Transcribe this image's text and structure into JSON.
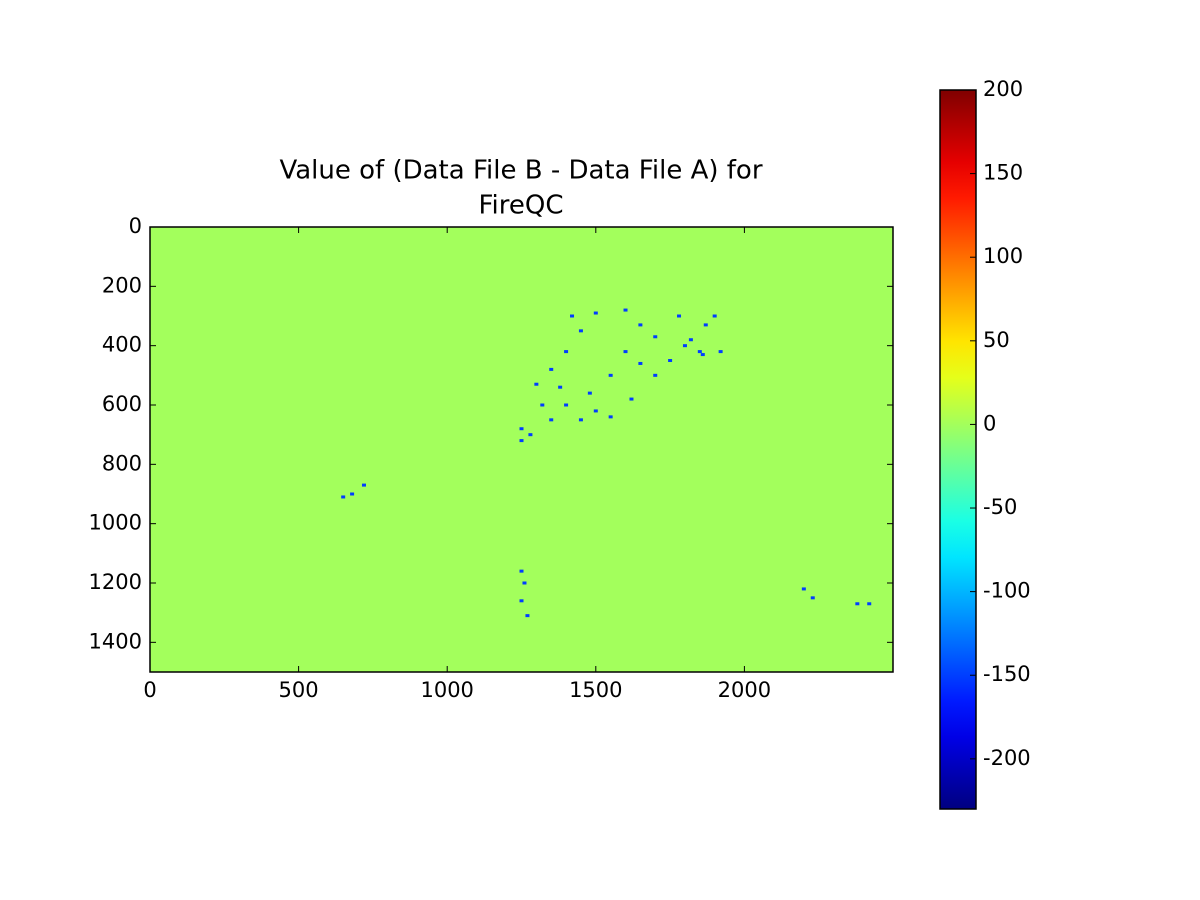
{
  "chart_data": {
    "type": "image",
    "title": [
      "Value of (Data File B - Data File A) for",
      "FireQC"
    ],
    "xlim": [
      0,
      2500
    ],
    "xticks": [
      0,
      500,
      1000,
      1500,
      2000
    ],
    "ylim": [
      1500,
      0
    ],
    "yticks": [
      0,
      200,
      400,
      600,
      800,
      1000,
      1200,
      1400
    ],
    "colormap": "jet",
    "clim": [
      -230,
      200
    ],
    "cticks": [
      -200,
      -150,
      -100,
      -50,
      0,
      50,
      100,
      150,
      200
    ],
    "field_value": 0,
    "speckles": {
      "value": -150,
      "points": [
        [
          1300,
          530
        ],
        [
          1320,
          600
        ],
        [
          1350,
          480
        ],
        [
          1400,
          420
        ],
        [
          1420,
          300
        ],
        [
          1450,
          350
        ],
        [
          1480,
          560
        ],
        [
          1500,
          620
        ],
        [
          1550,
          500
        ],
        [
          1600,
          420
        ],
        [
          1620,
          580
        ],
        [
          1650,
          330
        ],
        [
          1700,
          500
        ],
        [
          1750,
          450
        ],
        [
          1800,
          400
        ],
        [
          1820,
          380
        ],
        [
          1850,
          420
        ],
        [
          1870,
          330
        ],
        [
          1900,
          300
        ],
        [
          1280,
          700
        ],
        [
          1250,
          720
        ],
        [
          1450,
          650
        ],
        [
          1550,
          640
        ],
        [
          1400,
          600
        ],
        [
          1250,
          680
        ],
        [
          1700,
          370
        ],
        [
          1780,
          300
        ],
        [
          1860,
          430
        ],
        [
          1600,
          280
        ],
        [
          1500,
          290
        ],
        [
          1350,
          650
        ],
        [
          1650,
          460
        ],
        [
          1250,
          1160
        ],
        [
          1260,
          1200
        ],
        [
          1250,
          1260
        ],
        [
          1270,
          1310
        ],
        [
          2200,
          1220
        ],
        [
          2230,
          1250
        ],
        [
          2380,
          1270
        ],
        [
          2420,
          1270
        ],
        [
          680,
          900
        ],
        [
          650,
          910
        ],
        [
          720,
          870
        ],
        [
          1920,
          420
        ],
        [
          1380,
          540
        ]
      ]
    }
  }
}
